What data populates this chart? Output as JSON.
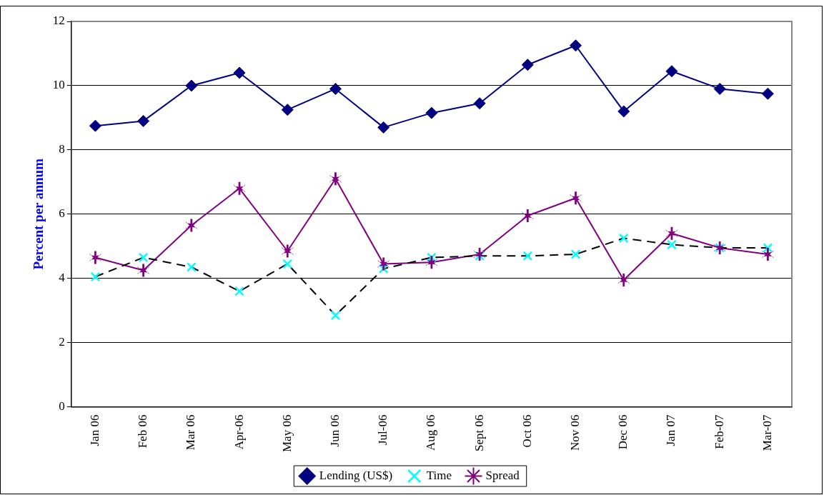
{
  "chart_data": {
    "type": "line",
    "ylabel": "Percent per annum",
    "categories": [
      "Jan 06",
      "Feb 06",
      "Mar 06",
      "Apr-06",
      "May 06",
      "Jun 06",
      "Jul-06",
      "Aug 06",
      "Sept 06",
      "Oct 06",
      "Nov 06",
      "Dec 06",
      "Jan 07",
      "Feb-07",
      "Mar-07"
    ],
    "series": [
      {
        "name": "Lending (US$)",
        "color": "#000080",
        "marker": "diamond",
        "line_style": "solid",
        "values": [
          8.75,
          8.9,
          10.0,
          10.4,
          9.25,
          9.9,
          8.7,
          9.15,
          9.45,
          10.65,
          11.25,
          9.2,
          10.45,
          9.9,
          9.75
        ]
      },
      {
        "name": "Time",
        "color": "#00ffff",
        "marker": "cross",
        "line_style": "dashed",
        "values": [
          4.05,
          4.65,
          4.35,
          3.6,
          4.45,
          2.85,
          4.3,
          4.65,
          4.7,
          4.7,
          4.75,
          5.25,
          5.05,
          4.95,
          4.95
        ]
      },
      {
        "name": "Spread",
        "color": "#800080",
        "marker": "star",
        "line_style": "solid",
        "values": [
          4.65,
          4.25,
          5.65,
          6.8,
          4.85,
          7.1,
          4.45,
          4.5,
          4.75,
          5.95,
          6.5,
          3.95,
          5.4,
          4.95,
          4.75
        ]
      }
    ],
    "ylim": [
      0,
      12
    ],
    "yticks": [
      0,
      2,
      4,
      6,
      8,
      10,
      12
    ],
    "grid": "y",
    "legend": "bottom"
  }
}
